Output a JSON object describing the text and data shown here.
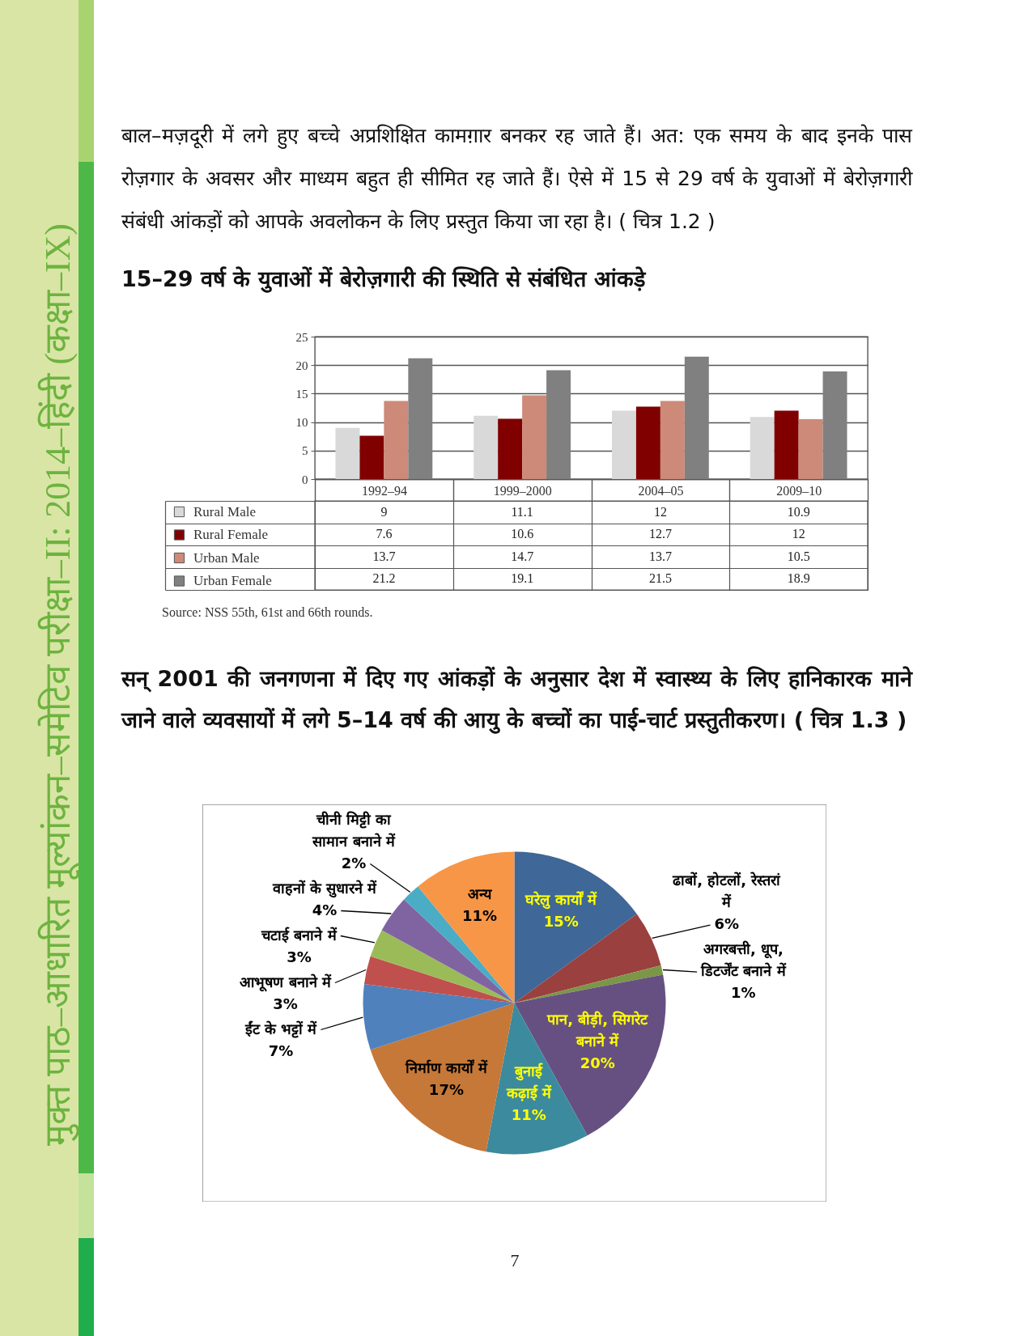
{
  "chart_data": [
    {
      "type": "bar",
      "title": "15–29 वर्ष के युवाओं में बेरोज़गारी की स्थिति से संबंधित आंकड़े",
      "categories": [
        "1992–94",
        "1999–2000",
        "2004–05",
        "2009–10"
      ],
      "series": [
        {
          "name": "Rural Male",
          "color": "#d9d9d9",
          "values": [
            9,
            11.1,
            12,
            10.9
          ]
        },
        {
          "name": "Rural Female",
          "color": "#800000",
          "values": [
            7.6,
            10.6,
            12.7,
            12
          ]
        },
        {
          "name": "Urban Male",
          "color": "#cd8a78",
          "values": [
            13.7,
            14.7,
            13.7,
            10.5
          ]
        },
        {
          "name": "Urban Female",
          "color": "#808080",
          "values": [
            21.2,
            19.1,
            21.5,
            18.9
          ]
        }
      ],
      "ylim": [
        0,
        25
      ],
      "yticks": [
        0,
        5,
        10,
        15,
        20,
        25
      ],
      "grid": "y",
      "legend": "bottom left",
      "data_labels": true,
      "annotations": [
        "बाल–मज़दूरी में लगे हुए बच्चे अप्रशिक्षित कामग़ार बनकर रह जाते हैं। अत: एक समय के बाद इनके पास रोज़गार के अवसर और माध्यम बहुत ही सीमित रह जाते हैं। ऐसे में 15 से 29 वर्ष के युवाओं में बेरोज़गारी संबंधी आंकड़ों को आपके अवलोकन के लिए प्रस्तुत किया जा रहा है। ( चित्र 1.2 )",
        "Source: NSS 55th, 61st and 66th rounds.",
        "मुक्त पाठ–आधारित मूल्यांकन–समेटिव परीक्षा–II: 2014–हिंदी (कक्षा–IX)"
      ]
    },
    {
      "type": "pie",
      "title": "सन् 2001 की जनगणना में दिए गए आंकड़ों के अनुसार देश में स्वास्थ्य के लिए हानिकारक माने जाने वाले व्यवसायों में लगे 5–14 वर्ष की आयु के बच्चों का पाई-चार्ट प्रस्तुतीकरण। ( चित्र 1.3 )",
      "categories": [
        "घरेलु कार्यों में",
        "ढाबों, होटलों, रेस्तरां में",
        "अगरबत्ती, धूप, डिटर्जेंट बनाने में",
        "पान, बीड़ी, सिगरेट बनाने में",
        "बुनाई कढ़ाई में",
        "निर्माण कार्यों में",
        "ईंट के भट्टों में",
        "आभूषण बनाने में",
        "चटाई बनाने में",
        "वाहनों के सुधारने में",
        "चीनी मिट्टी का सामान बनाने में",
        "अन्य"
      ],
      "values": [
        15,
        6,
        1,
        20,
        11,
        17,
        7,
        3,
        3,
        4,
        2,
        11
      ],
      "value_labels": [
        "15%",
        "6%",
        "1%",
        "20%",
        "11%",
        "17%",
        "7%",
        "3%",
        "3%",
        "4%",
        "2%",
        "11%"
      ],
      "colors": [
        "#3f6797",
        "#9a403e",
        "#7c9647",
        "#665082",
        "#3c8a9e",
        "#c67838",
        "#4f81bd",
        "#c0504d",
        "#9bbb59",
        "#8064a2",
        "#4bacc6",
        "#f79646"
      ],
      "annotations": [
        "7"
      ]
    }
  ]
}
